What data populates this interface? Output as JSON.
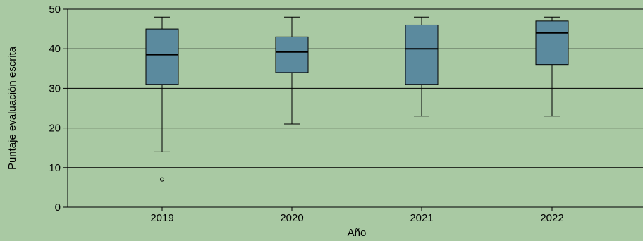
{
  "chart_data": {
    "type": "box",
    "xlabel": "Año",
    "ylabel": "Puntaje evaluación escrita",
    "ylim": [
      0,
      50
    ],
    "yticks": [
      0,
      10,
      20,
      30,
      40,
      50
    ],
    "grid": true,
    "colors": {
      "background": "#a9c9a3",
      "box_fill": "#5b8a9e",
      "stroke": "#000000"
    },
    "series": [
      {
        "category": "2019",
        "whisker_low": 14,
        "q1": 31,
        "median": 38.5,
        "q3": 45,
        "whisker_high": 48,
        "outliers": [
          7
        ]
      },
      {
        "category": "2020",
        "whisker_low": 21,
        "q1": 34,
        "median": 39.2,
        "q3": 43,
        "whisker_high": 48,
        "outliers": []
      },
      {
        "category": "2021",
        "whisker_low": 23,
        "q1": 31,
        "median": 40,
        "q3": 46,
        "whisker_high": 48,
        "outliers": []
      },
      {
        "category": "2022",
        "whisker_low": 23,
        "q1": 36,
        "median": 44,
        "q3": 47,
        "whisker_high": 48,
        "outliers": []
      }
    ]
  }
}
